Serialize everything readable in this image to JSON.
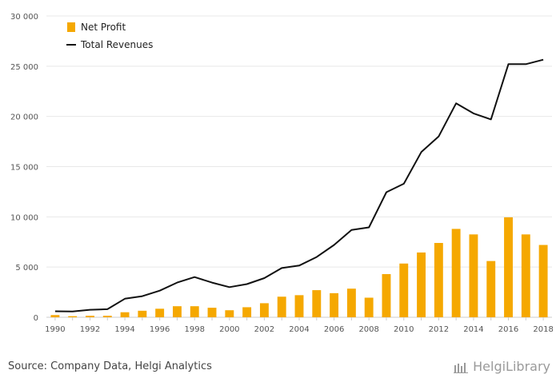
{
  "chart_data": {
    "type": "bar",
    "categories": [
      "1990",
      "1991",
      "1992",
      "1993",
      "1994",
      "1995",
      "1996",
      "1997",
      "1998",
      "1999",
      "2000",
      "2001",
      "2002",
      "2003",
      "2004",
      "2005",
      "2006",
      "2007",
      "2008",
      "2009",
      "2010",
      "2011",
      "2012",
      "2013",
      "2014",
      "2015",
      "2016",
      "2017",
      "2018"
    ],
    "x_tick_labels": [
      "1990",
      "1992",
      "1994",
      "1996",
      "1998",
      "2000",
      "2002",
      "2004",
      "2006",
      "2008",
      "2010",
      "2012",
      "2014",
      "2016",
      "2018"
    ],
    "y_tick_labels": [
      "0",
      "5 000",
      "10 000",
      "15 000",
      "20 000",
      "25 000",
      "30 000"
    ],
    "y_ticks": [
      0,
      5000,
      10000,
      15000,
      20000,
      25000,
      30000
    ],
    "ylim": [
      0,
      30000
    ],
    "grid": true,
    "legend_position": "top-left",
    "series": [
      {
        "name": "Net Profit",
        "type": "bar",
        "color": "#f5a800",
        "values": [
          220,
          110,
          150,
          150,
          500,
          650,
          850,
          1100,
          1100,
          950,
          700,
          1000,
          1400,
          2050,
          2200,
          2700,
          2400,
          2850,
          1950,
          4300,
          5350,
          6450,
          7400,
          8800,
          8250,
          5600,
          9950,
          8250,
          7200
        ]
      },
      {
        "name": "Total Revenues",
        "type": "line",
        "color": "#111111",
        "values": [
          600,
          580,
          750,
          800,
          1850,
          2100,
          2650,
          3450,
          4000,
          3450,
          3000,
          3300,
          3900,
          4900,
          5150,
          6000,
          7200,
          8700,
          8950,
          12450,
          13300,
          16450,
          18000,
          21300,
          20300,
          19700,
          25200,
          25200,
          25650
        ]
      }
    ]
  },
  "footer": {
    "source": "Source: Company Data, Helgi Analytics",
    "brand": "HelgiLibrary"
  }
}
